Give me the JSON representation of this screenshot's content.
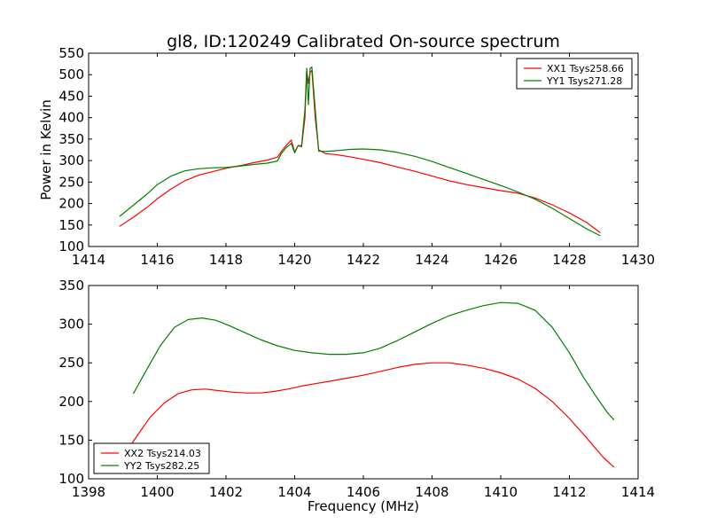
{
  "chart_data": [
    {
      "type": "line",
      "title": "gl8, ID:120249 Calibrated On-source spectrum",
      "xlabel": "",
      "ylabel": "Power in Kelvin",
      "xlim": [
        1414,
        1430
      ],
      "ylim": [
        100,
        550
      ],
      "xticks": [
        "1414",
        "1416",
        "1418",
        "1420",
        "1422",
        "1424",
        "1426",
        "1428",
        "1430"
      ],
      "yticks": [
        "100",
        "150",
        "200",
        "250",
        "300",
        "350",
        "400",
        "450",
        "500",
        "550"
      ],
      "legend_position": "top-right",
      "series": [
        {
          "name": "XX1 Tsys258.66",
          "color": "#ff0000",
          "x": [
            1414.9,
            1415.3,
            1415.7,
            1416.0,
            1416.4,
            1416.8,
            1417.2,
            1417.6,
            1418.0,
            1418.4,
            1418.8,
            1419.2,
            1419.5,
            1419.6,
            1419.75,
            1419.9,
            1420.0,
            1420.1,
            1420.2,
            1420.3,
            1420.35,
            1420.4,
            1420.45,
            1420.5,
            1420.6,
            1420.7,
            1420.9,
            1421.2,
            1421.6,
            1422.0,
            1422.5,
            1423.0,
            1423.5,
            1424.0,
            1424.5,
            1425.0,
            1425.5,
            1426.0,
            1426.5,
            1427.0,
            1427.5,
            1428.0,
            1428.5,
            1428.9
          ],
          "y": [
            147,
            168,
            191,
            211,
            234,
            253,
            266,
            274,
            282,
            288,
            295,
            301,
            308,
            320,
            335,
            348,
            320,
            335,
            332,
            400,
            510,
            480,
            505,
            510,
            400,
            325,
            316,
            314,
            309,
            303,
            295,
            285,
            275,
            264,
            253,
            244,
            237,
            230,
            224,
            213,
            197,
            178,
            156,
            132
          ]
        },
        {
          "name": "YY1 Tsys271.28",
          "color": "#008000",
          "x": [
            1414.9,
            1415.3,
            1415.7,
            1416.0,
            1416.4,
            1416.8,
            1417.2,
            1417.6,
            1418.0,
            1418.4,
            1418.8,
            1419.2,
            1419.5,
            1419.6,
            1419.75,
            1419.9,
            1420.0,
            1420.1,
            1420.2,
            1420.3,
            1420.35,
            1420.4,
            1420.45,
            1420.5,
            1420.6,
            1420.7,
            1420.9,
            1421.2,
            1421.6,
            1422.0,
            1422.5,
            1423.0,
            1423.5,
            1424.0,
            1424.5,
            1425.0,
            1425.5,
            1426.0,
            1426.5,
            1427.0,
            1427.5,
            1428.0,
            1428.5,
            1428.9
          ],
          "y": [
            170,
            196,
            222,
            244,
            264,
            276,
            281,
            283,
            284,
            287,
            291,
            294,
            299,
            315,
            330,
            340,
            318,
            335,
            335,
            420,
            515,
            430,
            515,
            518,
            420,
            322,
            321,
            323,
            326,
            327,
            325,
            319,
            310,
            298,
            284,
            270,
            256,
            242,
            227,
            210,
            189,
            165,
            141,
            125
          ]
        }
      ]
    },
    {
      "type": "line",
      "title": "",
      "xlabel": "Frequency (MHz)",
      "ylabel": "",
      "xlim": [
        1398,
        1414
      ],
      "ylim": [
        100,
        350
      ],
      "xticks": [
        "1398",
        "1400",
        "1402",
        "1404",
        "1406",
        "1408",
        "1410",
        "1412",
        "1414"
      ],
      "yticks": [
        "100",
        "150",
        "200",
        "250",
        "300",
        "350"
      ],
      "legend_position": "bottom-left",
      "series": [
        {
          "name": "XX2 Tsys214.03",
          "color": "#ff0000",
          "x": [
            1399.0,
            1399.4,
            1399.8,
            1400.2,
            1400.6,
            1401.0,
            1401.4,
            1401.8,
            1402.2,
            1402.6,
            1403.0,
            1403.4,
            1403.8,
            1404.2,
            1404.6,
            1405.0,
            1405.5,
            1406.0,
            1406.5,
            1407.0,
            1407.5,
            1408.0,
            1408.5,
            1409.0,
            1409.5,
            1410.0,
            1410.5,
            1411.0,
            1411.5,
            1412.0,
            1412.5,
            1413.0,
            1413.3
          ],
          "y": [
            128,
            155,
            180,
            198,
            210,
            215,
            216,
            214,
            212,
            211,
            211,
            213,
            216,
            220,
            223,
            226,
            230,
            234,
            239,
            244,
            248,
            250,
            250,
            247,
            243,
            237,
            229,
            217,
            200,
            178,
            153,
            127,
            115
          ]
        },
        {
          "name": "YY2 Tsys282.25",
          "color": "#008000",
          "x": [
            1399.3,
            1399.7,
            1400.1,
            1400.5,
            1400.9,
            1401.3,
            1401.7,
            1402.1,
            1402.5,
            1403.0,
            1403.5,
            1404.0,
            1404.5,
            1405.0,
            1405.5,
            1406.0,
            1406.5,
            1407.0,
            1407.5,
            1408.0,
            1408.5,
            1409.0,
            1409.5,
            1410.0,
            1410.5,
            1411.0,
            1411.5,
            1412.0,
            1412.4,
            1412.8,
            1413.1,
            1413.3
          ],
          "y": [
            210,
            242,
            273,
            296,
            306,
            308,
            305,
            298,
            290,
            280,
            272,
            266,
            263,
            261,
            261,
            263,
            269,
            279,
            290,
            301,
            311,
            318,
            324,
            328,
            327,
            318,
            296,
            263,
            232,
            205,
            186,
            176
          ]
        }
      ]
    }
  ]
}
